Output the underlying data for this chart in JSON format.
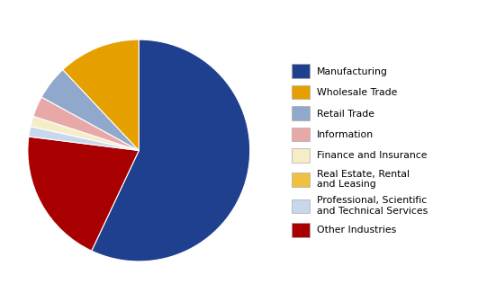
{
  "labels": [
    "Manufacturing",
    "Other Industries",
    "Professional, Scientific\nand Technical Services",
    "Finance and Insurance",
    "Information",
    "Retail Trade",
    "Wholesale Trade"
  ],
  "values": [
    57.0,
    20.0,
    1.5,
    1.5,
    3.0,
    5.0,
    12.0
  ],
  "colors": [
    "#1F3F8F",
    "#A80000",
    "#C8D8EC",
    "#F5ECC8",
    "#E8A8A8",
    "#8FA8CC",
    "#E5A000"
  ],
  "legend_labels": [
    "Manufacturing",
    "Wholesale Trade",
    "Retail Trade",
    "Information",
    "Finance and Insurance",
    "Real Estate, Rental\nand Leasing",
    "Professional, Scientific\nand Technical Services",
    "Other Industries"
  ],
  "legend_colors": [
    "#1F3F8F",
    "#E5A000",
    "#8FA8CC",
    "#E8A8A8",
    "#F5ECC8",
    "#F0C040",
    "#C8D8EC",
    "#A80000"
  ],
  "startangle": 90,
  "figsize": [
    5.51,
    3.35
  ],
  "dpi": 100
}
